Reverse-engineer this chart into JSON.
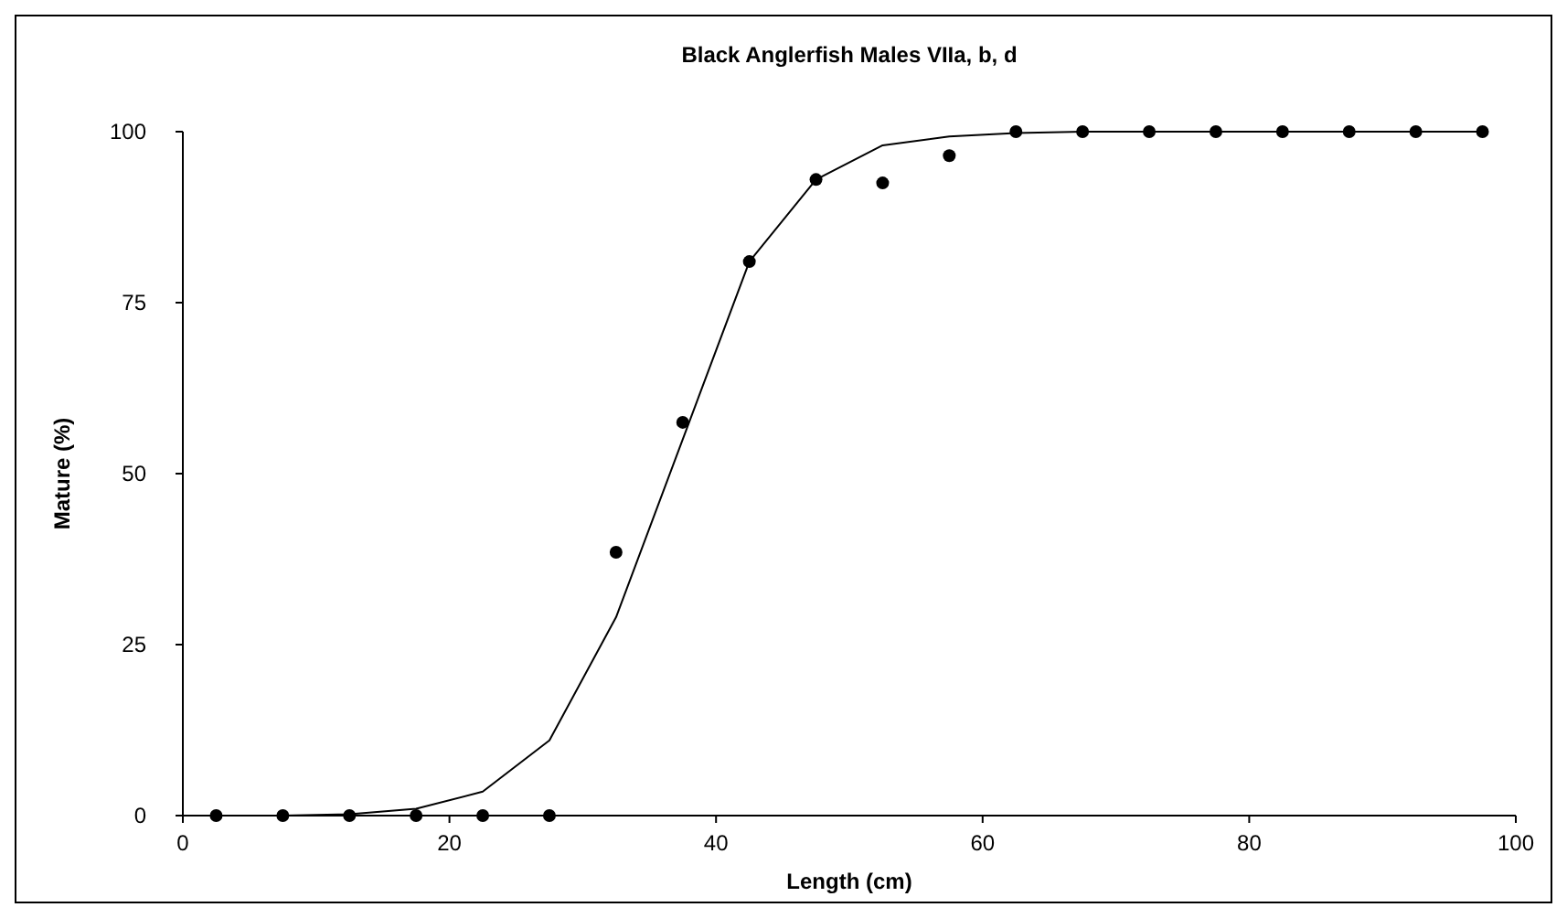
{
  "chart_data": {
    "type": "scatter",
    "title": "Black Anglerfish Males VIIa, b, d",
    "xlabel": "Length (cm)",
    "ylabel": "Mature (%)",
    "x": [
      2.5,
      7.5,
      12.5,
      17.5,
      22.5,
      27.5,
      32.5,
      37.5,
      42.5,
      47.5,
      52.5,
      57.5,
      62.5,
      67.5,
      72.5,
      77.5,
      82.5,
      87.5,
      92.5,
      97.5
    ],
    "series": [
      {
        "color": "#000000",
        "marker": "circle",
        "values": [
          0,
          0,
          0,
          0,
          0,
          0,
          38.5,
          57.5,
          81,
          93,
          92.5,
          96.5,
          100,
          100,
          100,
          100,
          100,
          100,
          100,
          100
        ]
      },
      {
        "type": "line",
        "color": "#000000",
        "marker": "none",
        "values": [
          0,
          0,
          0.2,
          1,
          3.5,
          11,
          29,
          55,
          81,
          93,
          98,
          99.3,
          99.8,
          100,
          100,
          100,
          100,
          100,
          100,
          100
        ]
      }
    ],
    "xlim": [
      0,
      100
    ],
    "xticks": [
      0,
      20,
      40,
      60,
      80,
      100
    ],
    "ylim": [
      0,
      100
    ],
    "yticks": [
      0,
      25,
      50,
      75,
      100
    ],
    "grid": false
  }
}
